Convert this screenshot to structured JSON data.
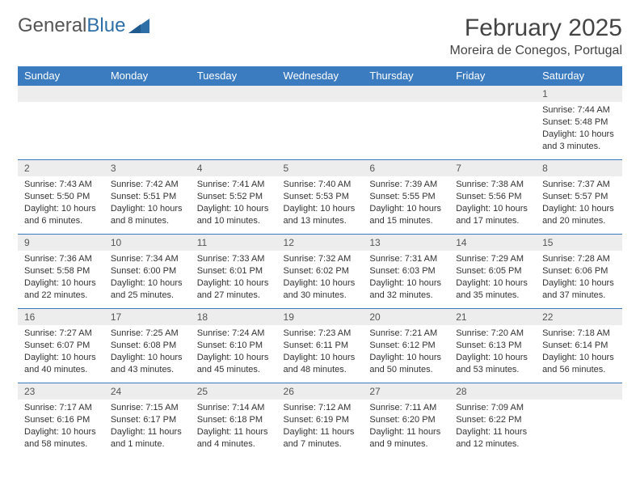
{
  "logo": {
    "text1": "General",
    "text2": "Blue"
  },
  "title": {
    "month": "February 2025",
    "location": "Moreira de Conegos, Portugal"
  },
  "colors": {
    "header_bg": "#3b7bbf",
    "header_text": "#ffffff",
    "daynum_bg": "#ededed",
    "row_border": "#3b7bbf",
    "text": "#333333",
    "logo_gray": "#555555",
    "logo_blue": "#2f6fa8"
  },
  "weekdays": [
    "Sunday",
    "Monday",
    "Tuesday",
    "Wednesday",
    "Thursday",
    "Friday",
    "Saturday"
  ],
  "weeks": [
    [
      {
        "day": "",
        "lines": []
      },
      {
        "day": "",
        "lines": []
      },
      {
        "day": "",
        "lines": []
      },
      {
        "day": "",
        "lines": []
      },
      {
        "day": "",
        "lines": []
      },
      {
        "day": "",
        "lines": []
      },
      {
        "day": "1",
        "lines": [
          "Sunrise: 7:44 AM",
          "Sunset: 5:48 PM",
          "Daylight: 10 hours and 3 minutes."
        ]
      }
    ],
    [
      {
        "day": "2",
        "lines": [
          "Sunrise: 7:43 AM",
          "Sunset: 5:50 PM",
          "Daylight: 10 hours and 6 minutes."
        ]
      },
      {
        "day": "3",
        "lines": [
          "Sunrise: 7:42 AM",
          "Sunset: 5:51 PM",
          "Daylight: 10 hours and 8 minutes."
        ]
      },
      {
        "day": "4",
        "lines": [
          "Sunrise: 7:41 AM",
          "Sunset: 5:52 PM",
          "Daylight: 10 hours and 10 minutes."
        ]
      },
      {
        "day": "5",
        "lines": [
          "Sunrise: 7:40 AM",
          "Sunset: 5:53 PM",
          "Daylight: 10 hours and 13 minutes."
        ]
      },
      {
        "day": "6",
        "lines": [
          "Sunrise: 7:39 AM",
          "Sunset: 5:55 PM",
          "Daylight: 10 hours and 15 minutes."
        ]
      },
      {
        "day": "7",
        "lines": [
          "Sunrise: 7:38 AM",
          "Sunset: 5:56 PM",
          "Daylight: 10 hours and 17 minutes."
        ]
      },
      {
        "day": "8",
        "lines": [
          "Sunrise: 7:37 AM",
          "Sunset: 5:57 PM",
          "Daylight: 10 hours and 20 minutes."
        ]
      }
    ],
    [
      {
        "day": "9",
        "lines": [
          "Sunrise: 7:36 AM",
          "Sunset: 5:58 PM",
          "Daylight: 10 hours and 22 minutes."
        ]
      },
      {
        "day": "10",
        "lines": [
          "Sunrise: 7:34 AM",
          "Sunset: 6:00 PM",
          "Daylight: 10 hours and 25 minutes."
        ]
      },
      {
        "day": "11",
        "lines": [
          "Sunrise: 7:33 AM",
          "Sunset: 6:01 PM",
          "Daylight: 10 hours and 27 minutes."
        ]
      },
      {
        "day": "12",
        "lines": [
          "Sunrise: 7:32 AM",
          "Sunset: 6:02 PM",
          "Daylight: 10 hours and 30 minutes."
        ]
      },
      {
        "day": "13",
        "lines": [
          "Sunrise: 7:31 AM",
          "Sunset: 6:03 PM",
          "Daylight: 10 hours and 32 minutes."
        ]
      },
      {
        "day": "14",
        "lines": [
          "Sunrise: 7:29 AM",
          "Sunset: 6:05 PM",
          "Daylight: 10 hours and 35 minutes."
        ]
      },
      {
        "day": "15",
        "lines": [
          "Sunrise: 7:28 AM",
          "Sunset: 6:06 PM",
          "Daylight: 10 hours and 37 minutes."
        ]
      }
    ],
    [
      {
        "day": "16",
        "lines": [
          "Sunrise: 7:27 AM",
          "Sunset: 6:07 PM",
          "Daylight: 10 hours and 40 minutes."
        ]
      },
      {
        "day": "17",
        "lines": [
          "Sunrise: 7:25 AM",
          "Sunset: 6:08 PM",
          "Daylight: 10 hours and 43 minutes."
        ]
      },
      {
        "day": "18",
        "lines": [
          "Sunrise: 7:24 AM",
          "Sunset: 6:10 PM",
          "Daylight: 10 hours and 45 minutes."
        ]
      },
      {
        "day": "19",
        "lines": [
          "Sunrise: 7:23 AM",
          "Sunset: 6:11 PM",
          "Daylight: 10 hours and 48 minutes."
        ]
      },
      {
        "day": "20",
        "lines": [
          "Sunrise: 7:21 AM",
          "Sunset: 6:12 PM",
          "Daylight: 10 hours and 50 minutes."
        ]
      },
      {
        "day": "21",
        "lines": [
          "Sunrise: 7:20 AM",
          "Sunset: 6:13 PM",
          "Daylight: 10 hours and 53 minutes."
        ]
      },
      {
        "day": "22",
        "lines": [
          "Sunrise: 7:18 AM",
          "Sunset: 6:14 PM",
          "Daylight: 10 hours and 56 minutes."
        ]
      }
    ],
    [
      {
        "day": "23",
        "lines": [
          "Sunrise: 7:17 AM",
          "Sunset: 6:16 PM",
          "Daylight: 10 hours and 58 minutes."
        ]
      },
      {
        "day": "24",
        "lines": [
          "Sunrise: 7:15 AM",
          "Sunset: 6:17 PM",
          "Daylight: 11 hours and 1 minute."
        ]
      },
      {
        "day": "25",
        "lines": [
          "Sunrise: 7:14 AM",
          "Sunset: 6:18 PM",
          "Daylight: 11 hours and 4 minutes."
        ]
      },
      {
        "day": "26",
        "lines": [
          "Sunrise: 7:12 AM",
          "Sunset: 6:19 PM",
          "Daylight: 11 hours and 7 minutes."
        ]
      },
      {
        "day": "27",
        "lines": [
          "Sunrise: 7:11 AM",
          "Sunset: 6:20 PM",
          "Daylight: 11 hours and 9 minutes."
        ]
      },
      {
        "day": "28",
        "lines": [
          "Sunrise: 7:09 AM",
          "Sunset: 6:22 PM",
          "Daylight: 11 hours and 12 minutes."
        ]
      },
      {
        "day": "",
        "lines": []
      }
    ]
  ]
}
